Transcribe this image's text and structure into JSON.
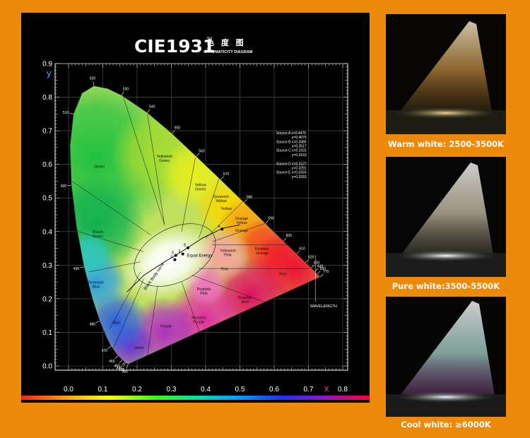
{
  "chart_data": {
    "type": "scatter",
    "title": "CIE1931",
    "title_sup": "2°",
    "title_sub": "2",
    "title_cn": "色 度 图",
    "subtitle": "CHROMATICITY DIAGRAM",
    "xlabel": "x",
    "ylabel": "y",
    "xlim": [
      0,
      0.8
    ],
    "ylim": [
      0,
      0.9
    ],
    "grid": true,
    "x_ticks": [
      "0.0",
      "0.1",
      "0.2",
      "0.3",
      "0.4",
      "0.5",
      "0.6",
      "0.7",
      "0.8"
    ],
    "y_ticks": [
      "0.0",
      "0.1",
      "0.2",
      "0.3",
      "0.4",
      "0.5",
      "0.6",
      "0.7",
      "0.8",
      "0.9"
    ],
    "spectral_locus": [
      {
        "wl": "380",
        "x": 0.174,
        "y": 0.005
      },
      {
        "wl": "430",
        "x": 0.166,
        "y": 0.009
      },
      {
        "wl": "440",
        "x": 0.164,
        "y": 0.011
      },
      {
        "wl": "450",
        "x": 0.157,
        "y": 0.018
      },
      {
        "wl": "460",
        "x": 0.144,
        "y": 0.03
      },
      {
        "wl": "470",
        "x": 0.124,
        "y": 0.058
      },
      {
        "wl": "475",
        "x": 0.11,
        "y": 0.087
      },
      {
        "wl": "480",
        "x": 0.091,
        "y": 0.133
      },
      {
        "wl": "485",
        "x": 0.069,
        "y": 0.201
      },
      {
        "wl": "490",
        "x": 0.045,
        "y": 0.295
      },
      {
        "wl": "495",
        "x": 0.023,
        "y": 0.413
      },
      {
        "wl": "500",
        "x": 0.008,
        "y": 0.538
      },
      {
        "wl": "505",
        "x": 0.004,
        "y": 0.655
      },
      {
        "wl": "510",
        "x": 0.014,
        "y": 0.75
      },
      {
        "wl": "515",
        "x": 0.039,
        "y": 0.812
      },
      {
        "wl": "520",
        "x": 0.074,
        "y": 0.834
      },
      {
        "wl": "525",
        "x": 0.114,
        "y": 0.826
      },
      {
        "wl": "530",
        "x": 0.155,
        "y": 0.806
      },
      {
        "wl": "540",
        "x": 0.23,
        "y": 0.754
      },
      {
        "wl": "550",
        "x": 0.302,
        "y": 0.692
      },
      {
        "wl": "560",
        "x": 0.373,
        "y": 0.624
      },
      {
        "wl": "570",
        "x": 0.444,
        "y": 0.555
      },
      {
        "wl": "580",
        "x": 0.512,
        "y": 0.487
      },
      {
        "wl": "590",
        "x": 0.575,
        "y": 0.424
      },
      {
        "wl": "600",
        "x": 0.627,
        "y": 0.372
      },
      {
        "wl": "610",
        "x": 0.666,
        "y": 0.334
      },
      {
        "wl": "620",
        "x": 0.692,
        "y": 0.308
      },
      {
        "wl": "630",
        "x": 0.708,
        "y": 0.292
      },
      {
        "wl": "640",
        "x": 0.719,
        "y": 0.281
      },
      {
        "wl": "650",
        "x": 0.726,
        "y": 0.274
      },
      {
        "wl": "770",
        "x": 0.735,
        "y": 0.265
      }
    ],
    "locus_labels": [
      "380",
      "430",
      "440",
      "450",
      "460",
      "470",
      "480",
      "490",
      "500",
      "510",
      "520",
      "530",
      "540",
      "550",
      "560",
      "570",
      "580",
      "590",
      "600",
      "610",
      "620",
      "630",
      "640",
      "650",
      "770"
    ],
    "regions": [
      {
        "name": "Green",
        "x": 0.09,
        "y": 0.59
      },
      {
        "name": "Yellowish Green",
        "x": 0.28,
        "y": 0.62
      },
      {
        "name": "Yellow Green",
        "x": 0.385,
        "y": 0.535
      },
      {
        "name": "Greenish Yellow",
        "x": 0.445,
        "y": 0.5
      },
      {
        "name": "Yellow",
        "x": 0.46,
        "y": 0.465
      },
      {
        "name": "Orange Yellow",
        "x": 0.505,
        "y": 0.435
      },
      {
        "name": "Orange",
        "x": 0.505,
        "y": 0.4
      },
      {
        "name": "Bluish Green",
        "x": 0.085,
        "y": 0.395
      },
      {
        "name": "Yellowish Pink",
        "x": 0.465,
        "y": 0.34
      },
      {
        "name": "Reddish Orange",
        "x": 0.565,
        "y": 0.345
      },
      {
        "name": "Pink",
        "x": 0.455,
        "y": 0.285
      },
      {
        "name": "Red",
        "x": 0.625,
        "y": 0.27
      },
      {
        "name": "Greenish Blue",
        "x": 0.08,
        "y": 0.245
      },
      {
        "name": "Purplish Pink",
        "x": 0.395,
        "y": 0.225
      },
      {
        "name": "Purplish Red",
        "x": 0.515,
        "y": 0.2
      },
      {
        "name": "Reddish Purple",
        "x": 0.38,
        "y": 0.14
      },
      {
        "name": "Blue",
        "x": 0.14,
        "y": 0.125
      },
      {
        "name": "Purple",
        "x": 0.285,
        "y": 0.115
      },
      {
        "name": "Violet",
        "x": 0.205,
        "y": 0.05
      }
    ],
    "black_body_label": "Black Body curve",
    "equal_energy_label": "Equal Energy",
    "wavelength_label": "WAVELENGTH",
    "sources": [
      {
        "name": "A",
        "x": 0.4476,
        "y": 0.4075
      },
      {
        "name": "B",
        "x": 0.3485,
        "y": 0.3517
      },
      {
        "name": "C",
        "x": 0.3101,
        "y": 0.3163
      },
      {
        "name": "D",
        "x": 0.3127,
        "y": 0.3291
      },
      {
        "name": "E",
        "x": 0.3333,
        "y": 0.3333
      }
    ],
    "source_legend": [
      "Source A x=0.4476",
      "y=0.4075",
      "Source B x=0.3485",
      "y=0.3517",
      "Source C x=0.3101",
      "y=0.3163",
      "",
      "Source D x=0.3127",
      "y=0.3291",
      "Source E x=0.3333",
      "y=0.3333"
    ]
  },
  "photos": [
    {
      "caption": "Warm white: 2500-3500K",
      "tint": "#f0c070"
    },
    {
      "caption": "Pure white:3500-5500K",
      "tint": "#f8e8c8"
    },
    {
      "caption": "Cool white: ≥6000K",
      "tint": "#d8f0ff"
    }
  ],
  "colors": {
    "background": "#ee8a0a",
    "panel": "#000000",
    "title": "#ffffff",
    "axis_label": "#4aa3ff",
    "x_axis_label": "#ff3a7a"
  }
}
